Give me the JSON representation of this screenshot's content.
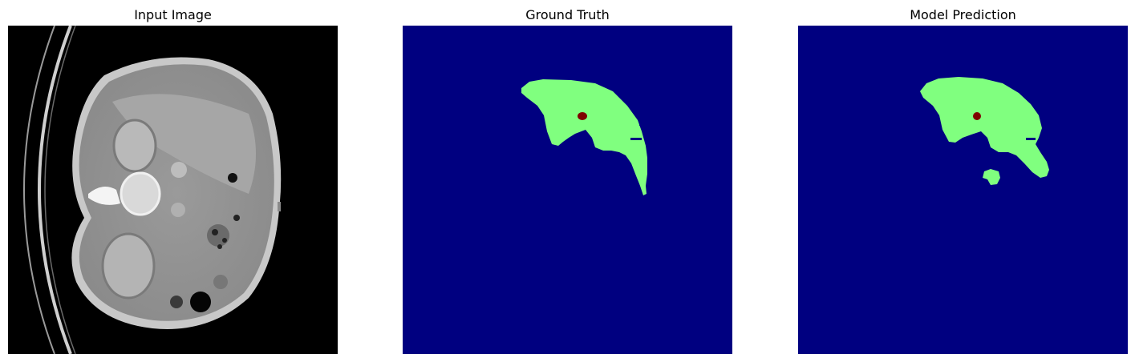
{
  "panels": [
    {
      "title": "Input Image"
    },
    {
      "title": "Ground Truth"
    },
    {
      "title": "Model Prediction"
    }
  ],
  "colors": {
    "background_class": "#000080",
    "organ_class": "#80ff7f",
    "lesion_class": "#7f0000",
    "ct_background": "#000000"
  }
}
